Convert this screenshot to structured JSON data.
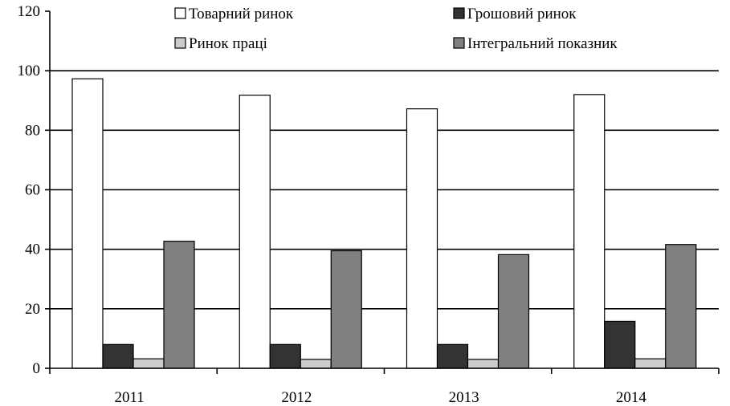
{
  "chart_data": {
    "type": "bar",
    "title": "",
    "xlabel": "",
    "ylabel": "",
    "categories": [
      "2011",
      "2012",
      "2013",
      "2014"
    ],
    "ylim": [
      0,
      120
    ],
    "yticks": [
      0,
      20,
      40,
      60,
      80,
      100,
      120
    ],
    "grid": true,
    "legend_position": "top",
    "series": [
      {
        "name": "Товарний ринок",
        "color": "#ffffff",
        "values": [
          97.3,
          91.8,
          87.2,
          92.0
        ]
      },
      {
        "name": "Грошовий ринок",
        "color": "#333333",
        "values": [
          8.0,
          8.0,
          8.0,
          15.8
        ]
      },
      {
        "name": "Ринок праці",
        "color": "#cccccc",
        "values": [
          3.2,
          3.0,
          3.0,
          3.2
        ]
      },
      {
        "name": "Інтегральний показник",
        "color": "#808080",
        "values": [
          42.7,
          39.5,
          38.2,
          41.6
        ]
      }
    ]
  }
}
